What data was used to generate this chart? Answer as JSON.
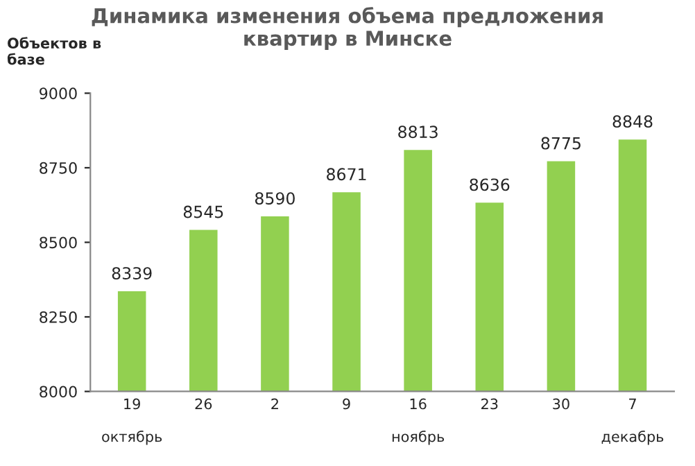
{
  "chart_data": {
    "type": "bar",
    "title": "Динамика изменения объема предложения\nквартир в Минске",
    "ylabel": "Объектов в\nбазе",
    "categories": [
      "19\n\nоктябрь",
      "26",
      "2",
      "9",
      "16\n\nноябрь",
      "23",
      "30",
      "7\n\nдекабрь"
    ],
    "values": [
      8339,
      8545,
      8590,
      8671,
      8813,
      8636,
      8775,
      8848
    ],
    "color": "#92d050",
    "ylim": [
      8000,
      9000
    ],
    "yticks": [
      8000,
      8250,
      8500,
      8750,
      9000
    ],
    "grid": false,
    "data_labels": true
  }
}
